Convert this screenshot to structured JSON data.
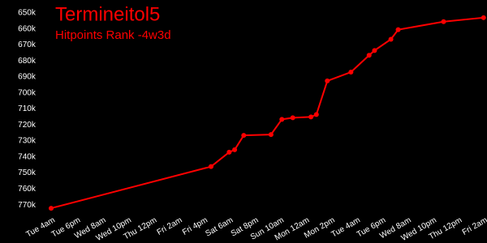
{
  "chart_data": {
    "type": "line",
    "title": "Termineitol5",
    "subtitle": "Hitpoints Rank -4w3d",
    "x": [
      0,
      88,
      98,
      101,
      106,
      121,
      127,
      133,
      143,
      146,
      152,
      165,
      175,
      178,
      187,
      191,
      216,
      238
    ],
    "values": [
      772000,
      746000,
      737000,
      735500,
      726500,
      726000,
      716500,
      715500,
      715000,
      713500,
      692500,
      687000,
      676500,
      673500,
      666500,
      660500,
      655500,
      653000
    ],
    "color": "#ff0000",
    "xlim": [
      0,
      239
    ],
    "xticks": [
      {
        "value": 0,
        "label": "Tue 4am"
      },
      {
        "value": 14,
        "label": "Tue 6pm"
      },
      {
        "value": 28,
        "label": "Wed 8am"
      },
      {
        "value": 42,
        "label": "Wed 10pm"
      },
      {
        "value": 56,
        "label": "Thu 12pm"
      },
      {
        "value": 70,
        "label": "Fri 2am"
      },
      {
        "value": 84,
        "label": "Fri 4pm"
      },
      {
        "value": 98,
        "label": "Sat 6am"
      },
      {
        "value": 112,
        "label": "Sat 8pm"
      },
      {
        "value": 126,
        "label": "Sun 10am"
      },
      {
        "value": 140,
        "label": "Mon 12am"
      },
      {
        "value": 154,
        "label": "Mon 2pm"
      },
      {
        "value": 168,
        "label": "Tue 4am"
      },
      {
        "value": 182,
        "label": "Tue 6pm"
      },
      {
        "value": 196,
        "label": "Wed 8am"
      },
      {
        "value": 210,
        "label": "Wed 10pm"
      },
      {
        "value": 224,
        "label": "Thu 12pm"
      },
      {
        "value": 238,
        "label": "Fri 2am"
      }
    ],
    "ylim": [
      775000,
      645000
    ],
    "yticks": [
      {
        "value": 650000,
        "label": "650k"
      },
      {
        "value": 660000,
        "label": "660k"
      },
      {
        "value": 670000,
        "label": "670k"
      },
      {
        "value": 680000,
        "label": "680k"
      },
      {
        "value": 690000,
        "label": "690k"
      },
      {
        "value": 700000,
        "label": "700k"
      },
      {
        "value": 710000,
        "label": "710k"
      },
      {
        "value": 720000,
        "label": "720k"
      },
      {
        "value": 730000,
        "label": "730k"
      },
      {
        "value": 740000,
        "label": "740k"
      },
      {
        "value": 750000,
        "label": "750k"
      },
      {
        "value": 760000,
        "label": "760k"
      },
      {
        "value": 770000,
        "label": "770k"
      }
    ],
    "grid": false
  }
}
